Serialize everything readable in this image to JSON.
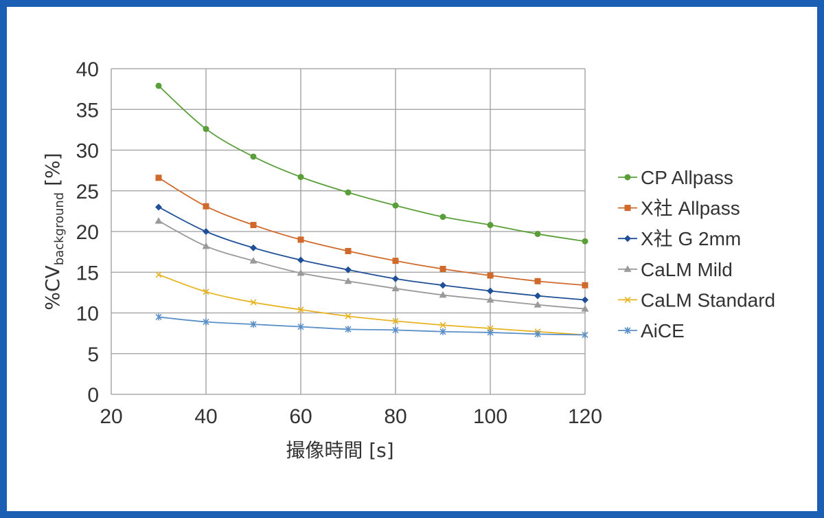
{
  "chart_data": {
    "type": "line",
    "xlabel": "撮像時間 [s]",
    "ylabel_main": "%CV",
    "ylabel_sub": "background",
    "ylabel_unit": " [%]",
    "xlim": [
      20,
      120
    ],
    "ylim": [
      0,
      40
    ],
    "xticks": [
      20,
      40,
      60,
      80,
      100,
      120
    ],
    "yticks": [
      0,
      5,
      10,
      15,
      20,
      25,
      30,
      35,
      40
    ],
    "grid": true,
    "legend_position": "right",
    "x": [
      30,
      40,
      50,
      60,
      70,
      80,
      90,
      100,
      110,
      120
    ],
    "series": [
      {
        "name": "CP Allpass",
        "color": "#5a9e3a",
        "marker": "circle",
        "values": [
          37.9,
          32.6,
          29.2,
          26.7,
          24.8,
          23.2,
          21.8,
          20.8,
          19.7,
          18.8
        ]
      },
      {
        "name": "X社 Allpass",
        "color": "#d06a2c",
        "marker": "square",
        "values": [
          26.6,
          23.1,
          20.8,
          19.0,
          17.6,
          16.4,
          15.4,
          14.6,
          13.9,
          13.4
        ]
      },
      {
        "name": "X社 G 2mm",
        "color": "#1f4f96",
        "marker": "diamond",
        "values": [
          23.0,
          20.0,
          18.0,
          16.5,
          15.3,
          14.2,
          13.4,
          12.7,
          12.1,
          11.6
        ]
      },
      {
        "name": "CaLM Mild",
        "color": "#9a9a9a",
        "marker": "triangle",
        "values": [
          21.3,
          18.2,
          16.4,
          14.9,
          13.9,
          13.0,
          12.2,
          11.6,
          11.0,
          10.5
        ]
      },
      {
        "name": "CaLM Standard",
        "color": "#e8b320",
        "marker": "x",
        "values": [
          14.7,
          12.6,
          11.3,
          10.4,
          9.6,
          9.0,
          8.5,
          8.1,
          7.7,
          7.3
        ]
      },
      {
        "name": "AiCE",
        "color": "#5b8fc7",
        "marker": "star",
        "values": [
          9.5,
          8.9,
          8.6,
          8.3,
          8.0,
          7.9,
          7.7,
          7.6,
          7.4,
          7.3
        ]
      }
    ]
  }
}
